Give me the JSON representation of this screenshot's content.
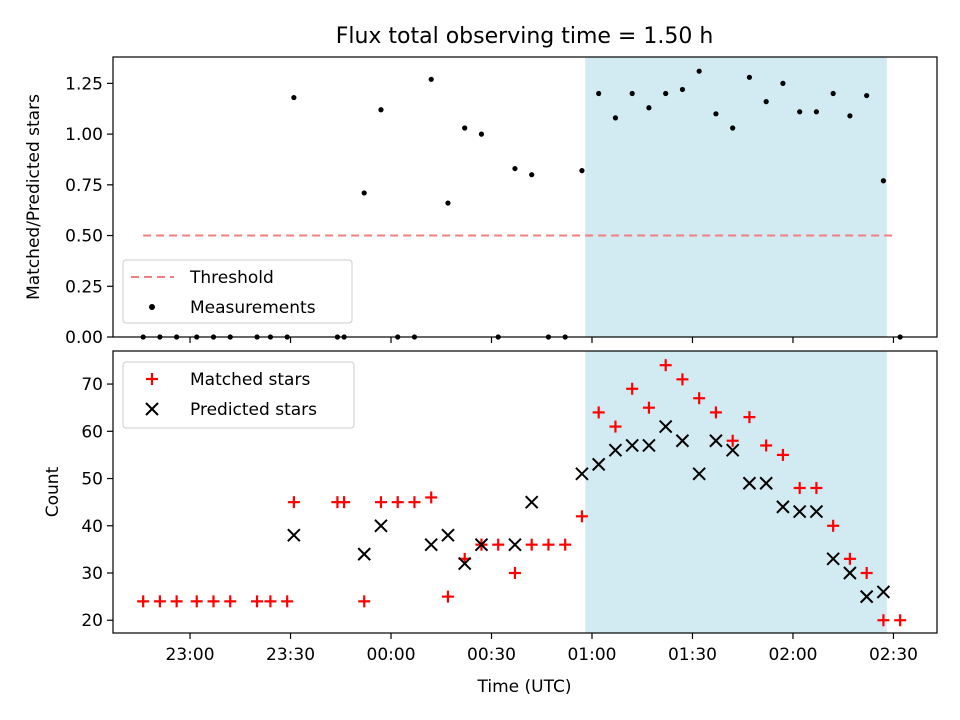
{
  "chart_data": [
    {
      "type": "scatter",
      "title": "Flux total observing time = 1.50 h",
      "xlabel": "",
      "ylabel": "Matched/Predicted stars",
      "ylim": [
        0,
        1.38
      ],
      "yticks": [
        "0.00",
        "0.25",
        "0.50",
        "0.75",
        "1.00",
        "1.25"
      ],
      "ytick_values": [
        0,
        0.25,
        0.5,
        0.75,
        1.0,
        1.25
      ],
      "xlim": [
        "22:37",
        "02:43"
      ],
      "highlight_span": [
        "00:58",
        "02:28"
      ],
      "highlight_color": "#add8e6",
      "threshold": {
        "name": "Threshold",
        "value": 0.5,
        "x_start": "22:46",
        "x_end": "02:31",
        "color": "#f08080",
        "style": "dashed"
      },
      "series": [
        {
          "name": "Measurements",
          "color": "#000000",
          "marker": "dot",
          "x": [
            "22:46",
            "22:51",
            "22:56",
            "23:02",
            "23:07",
            "23:12",
            "23:20",
            "23:24",
            "23:29",
            "23:31",
            "23:44",
            "23:46",
            "23:52",
            "23:57",
            "24:02",
            "24:07",
            "24:12",
            "24:17",
            "24:22",
            "24:27",
            "24:32",
            "24:37",
            "24:42",
            "24:47",
            "24:52",
            "24:57",
            "25:02",
            "25:07",
            "25:12",
            "25:17",
            "25:22",
            "25:27",
            "25:32",
            "25:37",
            "25:42",
            "25:47",
            "25:52",
            "25:57",
            "26:02",
            "26:07",
            "26:12",
            "26:17",
            "26:22",
            "26:27",
            "26:32"
          ],
          "y": [
            0,
            0,
            0,
            0,
            0,
            0,
            0,
            0,
            0,
            1.18,
            0,
            0,
            0.71,
            1.12,
            0,
            0,
            1.27,
            0.66,
            1.03,
            1.0,
            0,
            0.83,
            0.8,
            0,
            0,
            0.82,
            1.2,
            1.08,
            1.2,
            1.13,
            1.2,
            1.22,
            1.31,
            1.1,
            1.03,
            1.28,
            1.16,
            1.25,
            1.11,
            1.11,
            1.2,
            1.09,
            1.19,
            0.77,
            0
          ]
        }
      ],
      "legend": {
        "position": "bottom-left",
        "entries": [
          "Threshold",
          "Measurements"
        ]
      }
    },
    {
      "type": "scatter",
      "title": "",
      "xlabel": "Time (UTC)",
      "ylabel": "Count",
      "ylim": [
        17.3,
        77
      ],
      "yticks": [
        "20",
        "30",
        "40",
        "50",
        "60",
        "70"
      ],
      "ytick_values": [
        20,
        30,
        40,
        50,
        60,
        70
      ],
      "xlim": [
        "22:37",
        "02:43"
      ],
      "xticks": [
        "23:00",
        "23:30",
        "00:00",
        "00:30",
        "01:00",
        "01:30",
        "02:00",
        "02:30"
      ],
      "xtick_values": [
        "23:00",
        "23:30",
        "24:00",
        "24:30",
        "25:00",
        "25:30",
        "26:00",
        "26:30"
      ],
      "highlight_span": [
        "00:58",
        "02:28"
      ],
      "highlight_color": "#add8e6",
      "series": [
        {
          "name": "Matched stars",
          "color": "#ff0000",
          "marker": "plus",
          "x": [
            "22:46",
            "22:51",
            "22:56",
            "23:02",
            "23:07",
            "23:12",
            "23:20",
            "23:24",
            "23:29",
            "23:31",
            "23:44",
            "23:46",
            "23:52",
            "23:57",
            "24:02",
            "24:07",
            "24:12",
            "24:17",
            "24:22",
            "24:27",
            "24:32",
            "24:37",
            "24:42",
            "24:47",
            "24:52",
            "24:57",
            "25:02",
            "25:07",
            "25:12",
            "25:17",
            "25:22",
            "25:27",
            "25:32",
            "25:37",
            "25:42",
            "25:47",
            "25:52",
            "25:57",
            "26:02",
            "26:07",
            "26:12",
            "26:17",
            "26:22",
            "26:27",
            "26:32"
          ],
          "y": [
            24,
            24,
            24,
            24,
            24,
            24,
            24,
            24,
            24,
            45,
            45,
            45,
            24,
            45,
            45,
            45,
            46,
            25,
            33,
            36,
            36,
            30,
            36,
            36,
            36,
            42,
            64,
            61,
            69,
            65,
            74,
            71,
            67,
            64,
            58,
            63,
            57,
            55,
            48,
            48,
            40,
            33,
            30,
            20,
            20
          ]
        },
        {
          "name": "Predicted stars",
          "color": "#000000",
          "marker": "x",
          "x": [
            "23:31",
            "23:52",
            "23:57",
            "24:12",
            "24:17",
            "24:22",
            "24:27",
            "24:37",
            "24:42",
            "24:57",
            "25:02",
            "25:07",
            "25:12",
            "25:17",
            "25:22",
            "25:27",
            "25:32",
            "25:37",
            "25:42",
            "25:47",
            "25:52",
            "25:57",
            "26:02",
            "26:07",
            "26:12",
            "26:17",
            "26:22",
            "26:27"
          ],
          "y": [
            38,
            34,
            40,
            36,
            38,
            32,
            36,
            36,
            45,
            51,
            53,
            56,
            57,
            57,
            61,
            58,
            51,
            58,
            56,
            49,
            49,
            44,
            43,
            43,
            33,
            30,
            25,
            26
          ]
        }
      ],
      "legend": {
        "position": "top-left",
        "entries": [
          "Matched stars",
          "Predicted stars"
        ]
      }
    }
  ]
}
